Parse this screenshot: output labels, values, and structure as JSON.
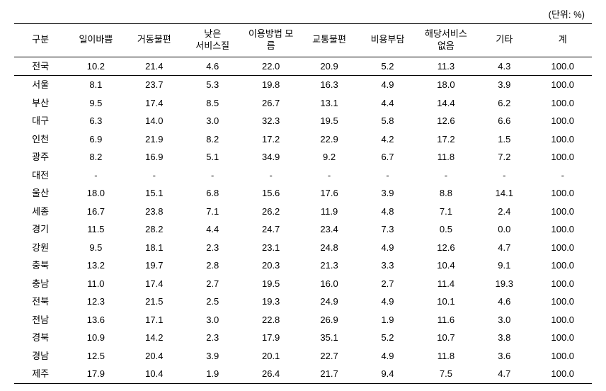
{
  "unit_label": "(단위: %)",
  "table": {
    "columns": [
      "구분",
      "일이바쁨",
      "거동불편",
      "낮은\n서비스질",
      "이용방법 모름",
      "교통불편",
      "비용부담",
      "해당서비스\n없음",
      "기타",
      "계"
    ],
    "rows": [
      {
        "label": "전국",
        "values": [
          "10.2",
          "21.4",
          "4.6",
          "22.0",
          "20.9",
          "5.2",
          "11.3",
          "4.3",
          "100.0"
        ]
      },
      {
        "label": "서울",
        "values": [
          "8.1",
          "23.7",
          "5.3",
          "19.8",
          "16.3",
          "4.9",
          "18.0",
          "3.9",
          "100.0"
        ]
      },
      {
        "label": "부산",
        "values": [
          "9.5",
          "17.4",
          "8.5",
          "26.7",
          "13.1",
          "4.4",
          "14.4",
          "6.2",
          "100.0"
        ]
      },
      {
        "label": "대구",
        "values": [
          "6.3",
          "14.0",
          "3.0",
          "32.3",
          "19.5",
          "5.8",
          "12.6",
          "6.6",
          "100.0"
        ]
      },
      {
        "label": "인천",
        "values": [
          "6.9",
          "21.9",
          "8.2",
          "17.2",
          "22.9",
          "4.2",
          "17.2",
          "1.5",
          "100.0"
        ]
      },
      {
        "label": "광주",
        "values": [
          "8.2",
          "16.9",
          "5.1",
          "34.9",
          "9.2",
          "6.7",
          "11.8",
          "7.2",
          "100.0"
        ]
      },
      {
        "label": "대전",
        "values": [
          "-",
          "-",
          "-",
          "-",
          "-",
          "-",
          "-",
          "-",
          "-"
        ]
      },
      {
        "label": "울산",
        "values": [
          "18.0",
          "15.1",
          "6.8",
          "15.6",
          "17.6",
          "3.9",
          "8.8",
          "14.1",
          "100.0"
        ]
      },
      {
        "label": "세종",
        "values": [
          "16.7",
          "23.8",
          "7.1",
          "26.2",
          "11.9",
          "4.8",
          "7.1",
          "2.4",
          "100.0"
        ]
      },
      {
        "label": "경기",
        "values": [
          "11.5",
          "28.2",
          "4.4",
          "24.7",
          "23.4",
          "7.3",
          "0.5",
          "0.0",
          "100.0"
        ]
      },
      {
        "label": "강원",
        "values": [
          "9.5",
          "18.1",
          "2.3",
          "23.1",
          "24.8",
          "4.9",
          "12.6",
          "4.7",
          "100.0"
        ]
      },
      {
        "label": "충북",
        "values": [
          "13.2",
          "19.7",
          "2.8",
          "20.3",
          "21.3",
          "3.3",
          "10.4",
          "9.1",
          "100.0"
        ]
      },
      {
        "label": "충남",
        "values": [
          "11.0",
          "17.4",
          "2.7",
          "19.5",
          "16.0",
          "2.7",
          "11.4",
          "19.3",
          "100.0"
        ]
      },
      {
        "label": "전북",
        "values": [
          "12.3",
          "21.5",
          "2.5",
          "19.3",
          "24.9",
          "4.9",
          "10.1",
          "4.6",
          "100.0"
        ]
      },
      {
        "label": "전남",
        "values": [
          "13.6",
          "17.1",
          "3.0",
          "22.8",
          "26.9",
          "1.9",
          "11.6",
          "3.0",
          "100.0"
        ]
      },
      {
        "label": "경북",
        "values": [
          "10.9",
          "14.2",
          "2.3",
          "17.9",
          "35.1",
          "5.2",
          "10.7",
          "3.8",
          "100.0"
        ]
      },
      {
        "label": "경남",
        "values": [
          "12.5",
          "20.4",
          "3.9",
          "20.1",
          "22.7",
          "4.9",
          "11.8",
          "3.6",
          "100.0"
        ]
      },
      {
        "label": "제주",
        "values": [
          "17.9",
          "10.4",
          "1.9",
          "26.4",
          "21.7",
          "9.4",
          "7.5",
          "4.7",
          "100.0"
        ]
      }
    ]
  }
}
